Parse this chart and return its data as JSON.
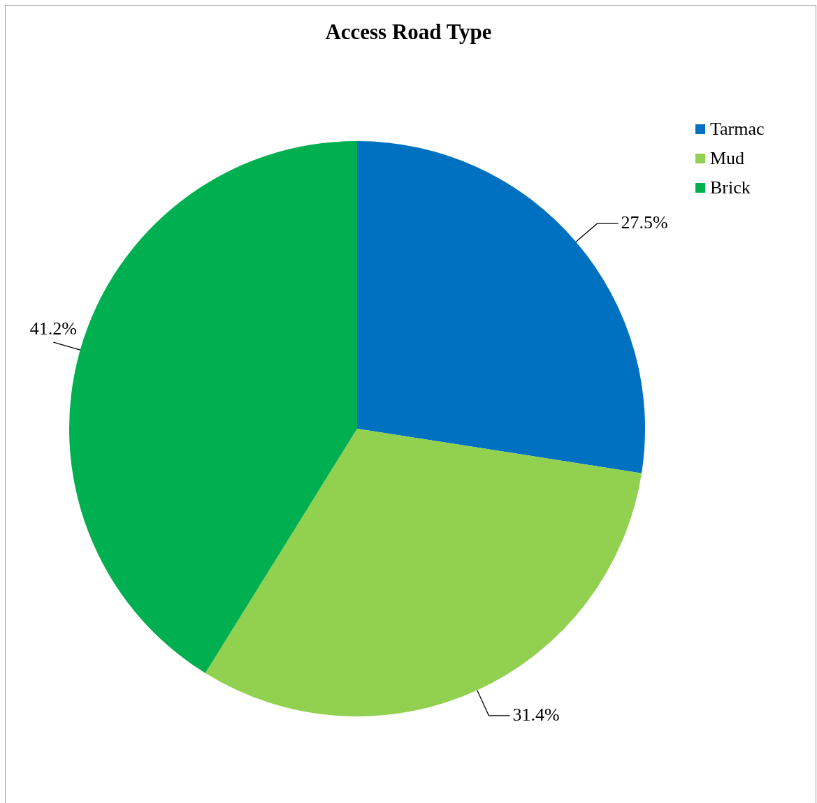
{
  "chart_data": {
    "type": "pie",
    "title": "Access Road Type",
    "categories": [
      "Tarmac",
      "Mud",
      "Brick"
    ],
    "values": [
      27.5,
      31.4,
      41.2
    ],
    "colors": [
      "#0070c0",
      "#92d050",
      "#00b050"
    ],
    "value_labels": [
      "27.5%",
      "31.4%",
      "41.2%"
    ],
    "legend": "top right"
  }
}
